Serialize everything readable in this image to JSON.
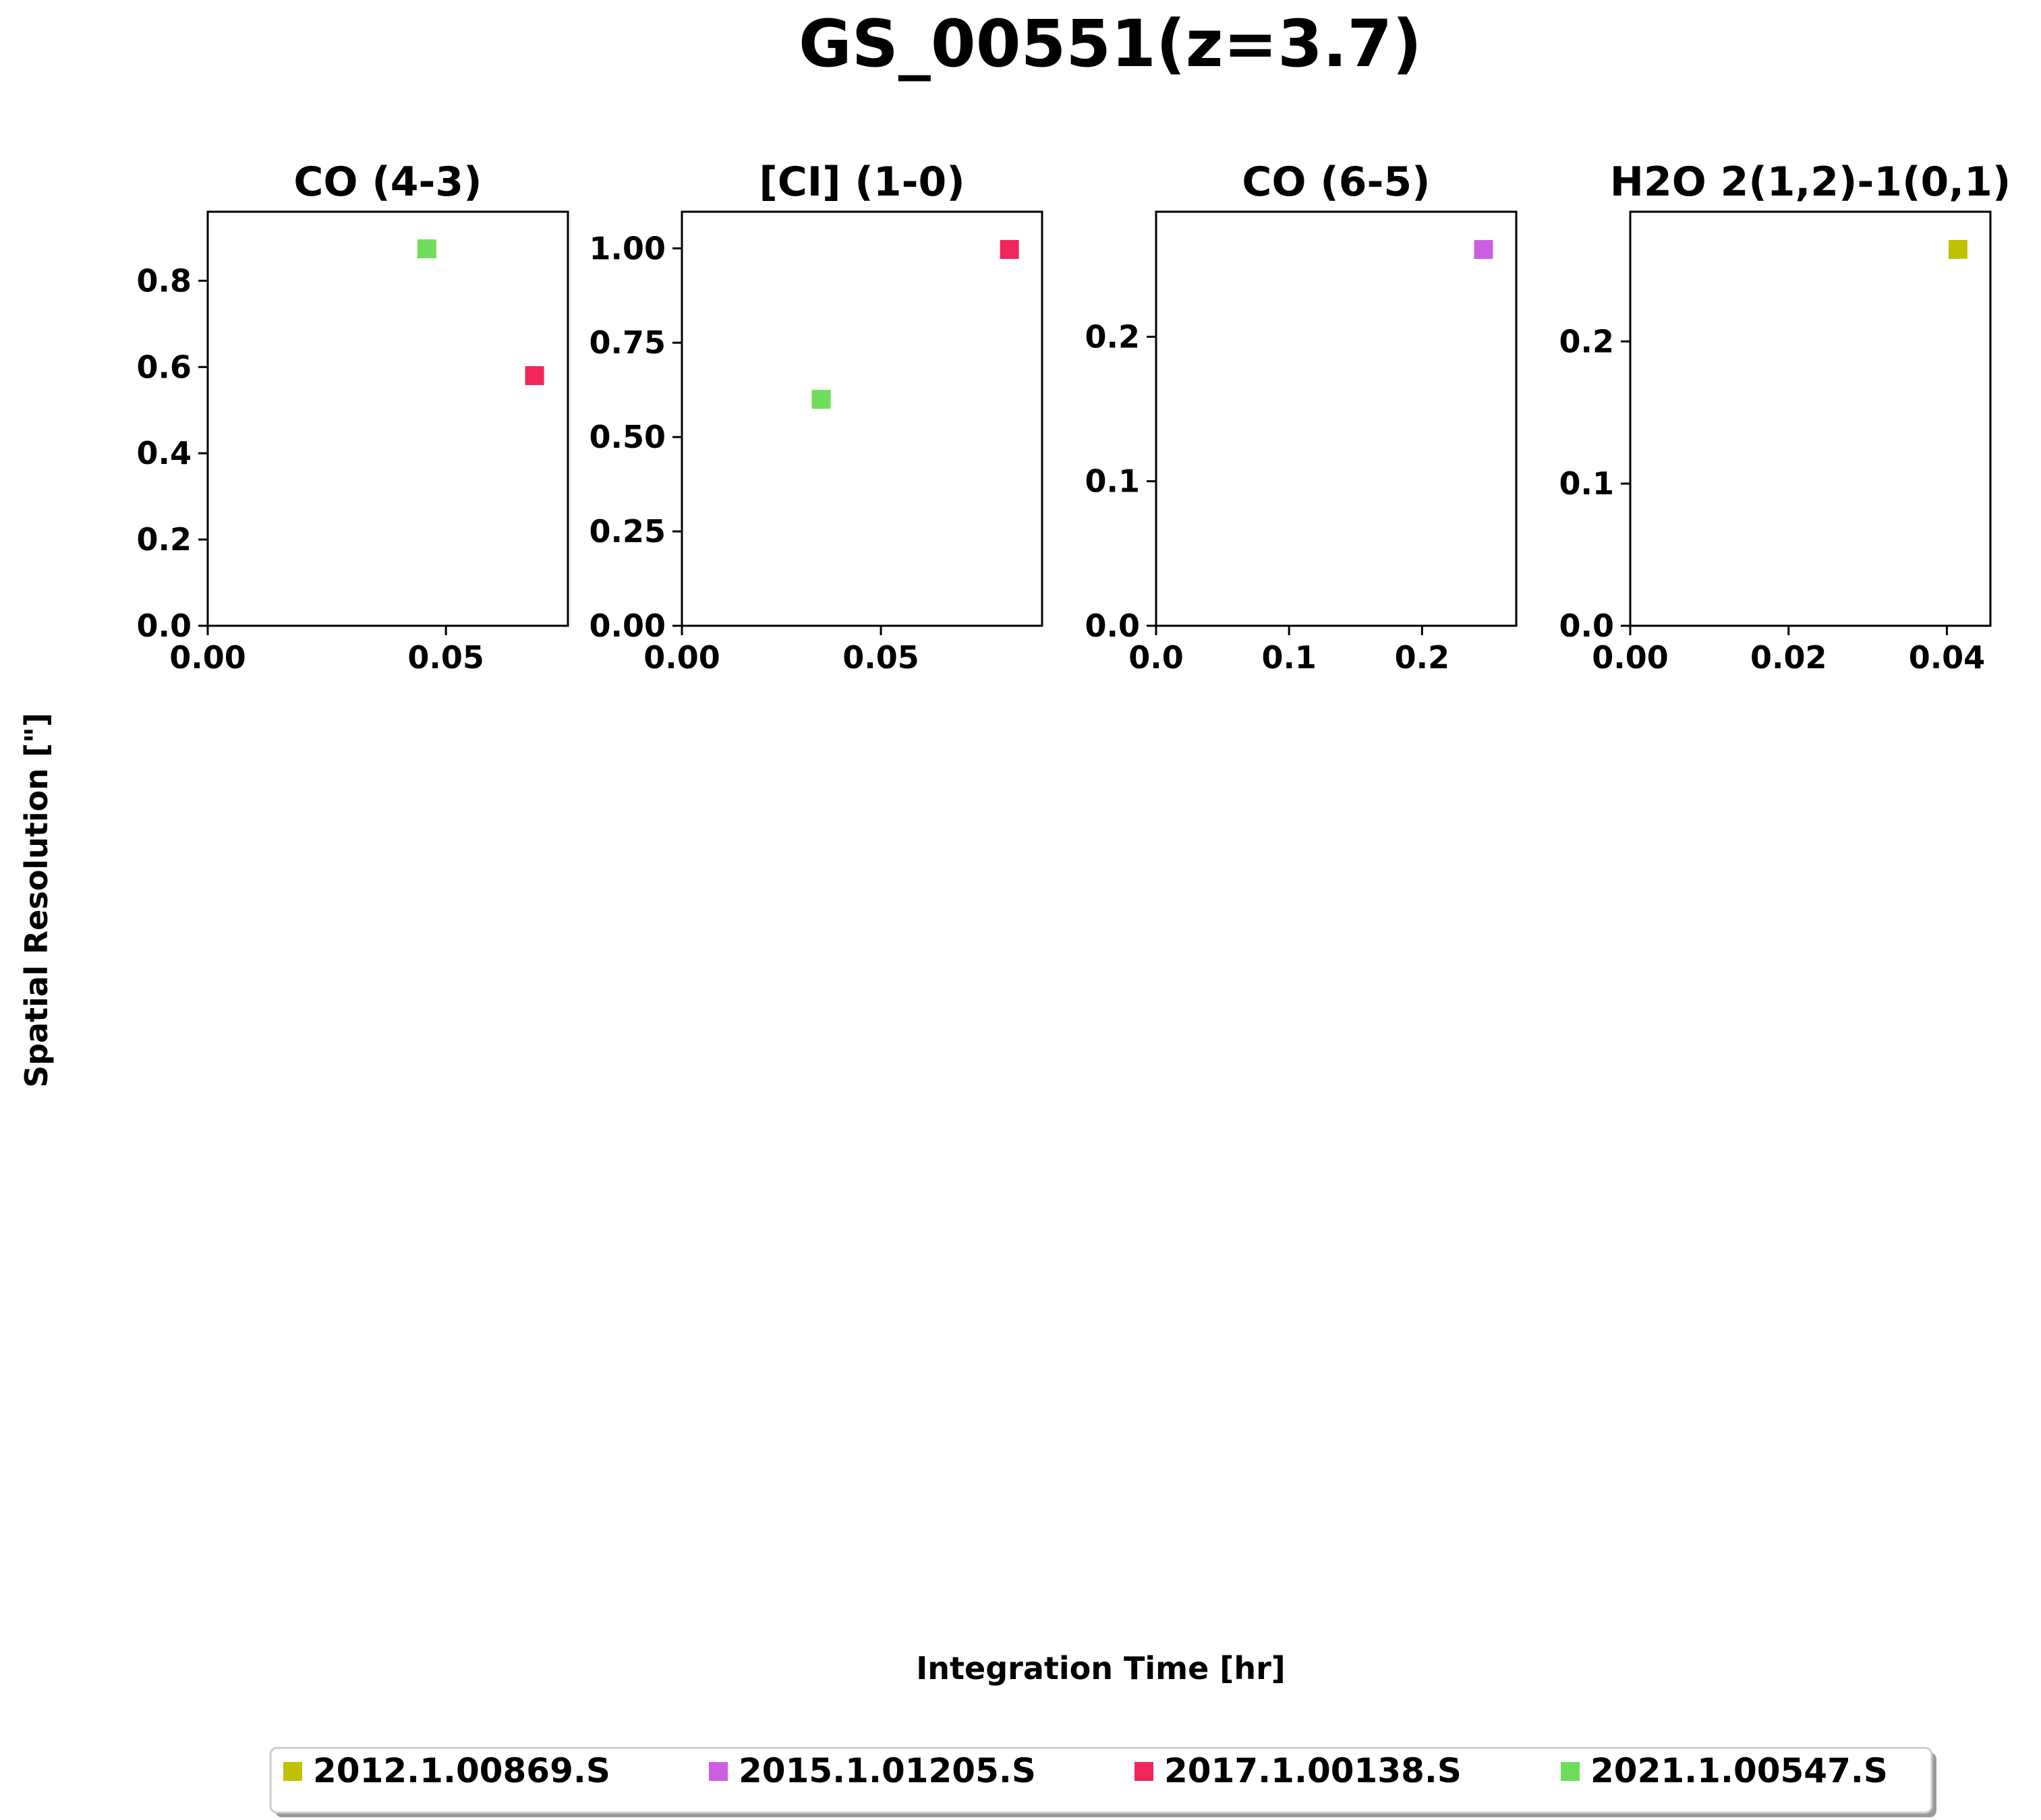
{
  "chart_data": {
    "type": "scatter",
    "title": "GS_00551(z=3.7)",
    "xlabel": "Integration Time [hr]",
    "ylabel": "Spatial Resolution [\"]",
    "grid": false,
    "legend_placement": "bottom-center",
    "legend": [
      {
        "name": "2012.1.00869.S",
        "color": "#bfc200"
      },
      {
        "name": "2015.1.01205.S",
        "color": "#cd5ee2"
      },
      {
        "name": "2017.1.00138.S",
        "color": "#f0265b"
      },
      {
        "name": "2021.1.00547.S",
        "color": "#6ede5a"
      }
    ],
    "panels": [
      {
        "title": "CO (4-3)",
        "xlim": [
          0,
          0.0756
        ],
        "ylim": [
          0,
          0.96
        ],
        "xticks": [
          0.0,
          0.05
        ],
        "xtick_labels": [
          "0.00",
          "0.05"
        ],
        "yticks": [
          0.0,
          0.2,
          0.4,
          0.6,
          0.8
        ],
        "ytick_labels": [
          "0.0",
          "0.2",
          "0.4",
          "0.6",
          "0.8"
        ],
        "points": [
          {
            "series": "2021.1.00547.S",
            "x": 0.046,
            "y": 0.874
          },
          {
            "series": "2017.1.00138.S",
            "x": 0.0686,
            "y": 0.58
          }
        ]
      },
      {
        "title": "[CI] (1-0)",
        "xlim": [
          0,
          0.0905
        ],
        "ylim": [
          0,
          1.097
        ],
        "xticks": [
          0.0,
          0.05
        ],
        "xtick_labels": [
          "0.00",
          "0.05"
        ],
        "yticks": [
          0.0,
          0.25,
          0.5,
          0.75,
          1.0
        ],
        "ytick_labels": [
          "0.00",
          "0.25",
          "0.50",
          "0.75",
          "1.00"
        ],
        "points": [
          {
            "series": "2021.1.00547.S",
            "x": 0.035,
            "y": 0.6
          },
          {
            "series": "2017.1.00138.S",
            "x": 0.0823,
            "y": 0.997
          }
        ]
      },
      {
        "title": "CO (6-5)",
        "xlim": [
          0,
          0.2708
        ],
        "ylim": [
          0,
          0.2865
        ],
        "xticks": [
          0.0,
          0.1,
          0.2
        ],
        "xtick_labels": [
          "0.0",
          "0.1",
          "0.2"
        ],
        "yticks": [
          0.0,
          0.1,
          0.2
        ],
        "ytick_labels": [
          "0.0",
          "0.1",
          "0.2"
        ],
        "points": [
          {
            "series": "2015.1.01205.S",
            "x": 0.2462,
            "y": 0.2604
          }
        ]
      },
      {
        "title": "H2O 2(1,2)-1(0,1)",
        "xlim": [
          0,
          0.0455
        ],
        "ylim": [
          0,
          0.2912
        ],
        "xticks": [
          0.0,
          0.02,
          0.04
        ],
        "xtick_labels": [
          "0.00",
          "0.02",
          "0.04"
        ],
        "yticks": [
          0.0,
          0.1,
          0.2
        ],
        "ytick_labels": [
          "0.0",
          "0.1",
          "0.2"
        ],
        "points": [
          {
            "series": "2012.1.00869.S",
            "x": 0.0414,
            "y": 0.2647
          }
        ]
      }
    ]
  }
}
